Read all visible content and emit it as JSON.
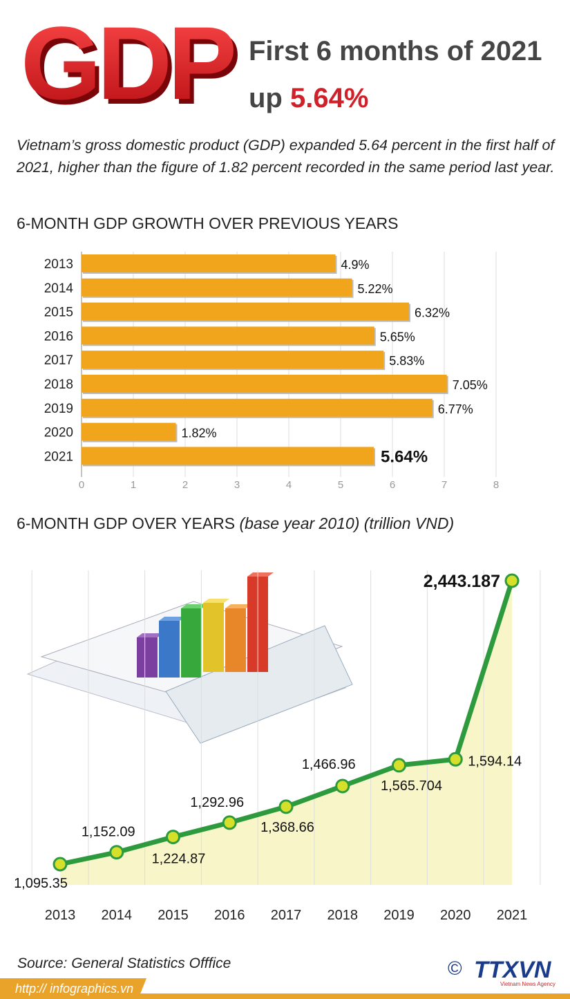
{
  "header": {
    "logo": "GDP",
    "title": "First 6 months of 2021",
    "title_prefix": "up",
    "title_highlight": "5.64%"
  },
  "intro": "Vietnam’s gross domestic product (GDP) expanded 5.64 percent in the first half of 2021, higher than the figure of 1.82 percent recorded in the same period last year.",
  "chart_data": [
    {
      "type": "bar",
      "orientation": "horizontal",
      "title": "6-MONTH GDP GROWTH OVER PREVIOUS YEARS",
      "categories": [
        "2013",
        "2014",
        "2015",
        "2016",
        "2017",
        "2018",
        "2019",
        "2020",
        "2021"
      ],
      "values": [
        4.9,
        5.22,
        6.32,
        5.65,
        5.83,
        7.05,
        6.77,
        1.82,
        5.64
      ],
      "value_labels": [
        "4.9%",
        "5.22%",
        "6.32%",
        "5.65%",
        "5.83%",
        "7.05%",
        "6.77%",
        "1.82%",
        "5.64%"
      ],
      "color": "#f0a51c",
      "xlim": [
        0,
        8
      ],
      "xticks": [
        0,
        1,
        2,
        3,
        4,
        5,
        6,
        7,
        8
      ],
      "grid": true
    },
    {
      "type": "line",
      "title": "6-MONTH GDP OVER YEARS",
      "subtitle": "(base year 2010) (trillion VND)",
      "categories": [
        "2013",
        "2014",
        "2015",
        "2016",
        "2017",
        "2018",
        "2019",
        "2020",
        "2021"
      ],
      "values": [
        1095.35,
        1152.09,
        1224.87,
        1292.96,
        1368.66,
        1466.96,
        1565.704,
        1594.14,
        2443.187
      ],
      "value_labels": [
        "1,095.35",
        "1,152.09",
        "1,224.87",
        "1,292.96",
        "1,368.66",
        "1,466.96",
        "1,565.704",
        "1,594.14",
        "2,443.187"
      ],
      "color": "#2e9a3e",
      "area_color": "#f8f6c8",
      "marker_color": "#d6e02a"
    }
  ],
  "footer": {
    "source": "Source: General Statistics Offfice",
    "url": "http:// infographics.vn",
    "copyright": "©",
    "agency": "TTXVN",
    "agency_full": "Vietnam News Agency"
  }
}
